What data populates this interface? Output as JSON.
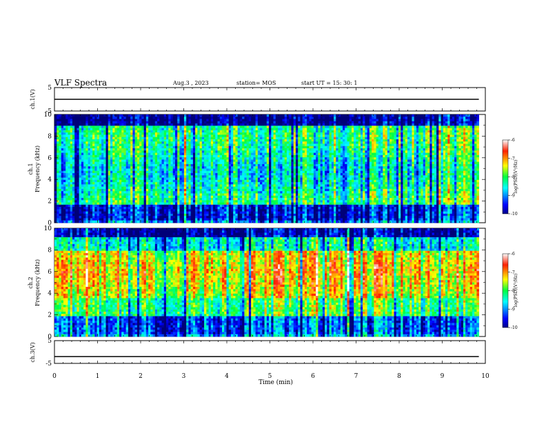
{
  "header": {
    "title": "VLF Spectra",
    "date": "Aug.3 , 2023",
    "station": "station= MOS",
    "start_ut": "start UT = 15: 30: 1"
  },
  "chart_data": [
    {
      "type": "line",
      "panel": "ch1-waveform",
      "ylabel": "ch.1(V)",
      "ylim": [
        -5,
        5
      ],
      "yticks": [
        "5",
        "-5"
      ],
      "xlim": [
        0,
        10
      ],
      "series": [
        {
          "x": [
            0,
            9.85
          ],
          "values": [
            0,
            0
          ]
        }
      ]
    },
    {
      "type": "heatmap",
      "panel": "ch1-spectrogram",
      "ylabel": "ch.1\nFrequency (kHz)",
      "ylim": [
        0,
        10
      ],
      "yticks": [
        "0",
        "2",
        "4",
        "6",
        "8",
        "10"
      ],
      "xlim": [
        0,
        10
      ],
      "data_extent_x": [
        0,
        9.85
      ],
      "colorbar": {
        "label": "log(PSD)(V²/Hz)",
        "range": [
          -10,
          -6
        ],
        "ticks": [
          "-6",
          "-7",
          "-8",
          "-9",
          "-10"
        ],
        "colormap": "jet"
      }
    },
    {
      "type": "heatmap",
      "panel": "ch2-spectrogram",
      "ylabel": "ch.2\nFrequency (kHz)",
      "ylim": [
        0,
        10
      ],
      "yticks": [
        "0",
        "2",
        "4",
        "6",
        "8",
        "10"
      ],
      "xlim": [
        0,
        10
      ],
      "data_extent_x": [
        0,
        9.85
      ],
      "colorbar": {
        "label": "log(PSD)(V²/Hz)",
        "range": [
          -10,
          -6
        ],
        "ticks": [
          "-6",
          "-7",
          "-8",
          "-9",
          "-10"
        ],
        "colormap": "jet"
      }
    },
    {
      "type": "line",
      "panel": "ch3-waveform",
      "ylabel": "ch.3(V)",
      "ylim": [
        -5,
        5
      ],
      "yticks": [
        "5",
        "-5"
      ],
      "xlim": [
        0,
        10
      ],
      "series": [
        {
          "x": [
            0,
            9.85
          ],
          "values": [
            -2,
            -2
          ]
        }
      ]
    }
  ],
  "xaxis": {
    "label": "Time (min)",
    "ticks": [
      "0",
      "1",
      "2",
      "3",
      "4",
      "5",
      "6",
      "7",
      "8",
      "9",
      "10"
    ]
  }
}
